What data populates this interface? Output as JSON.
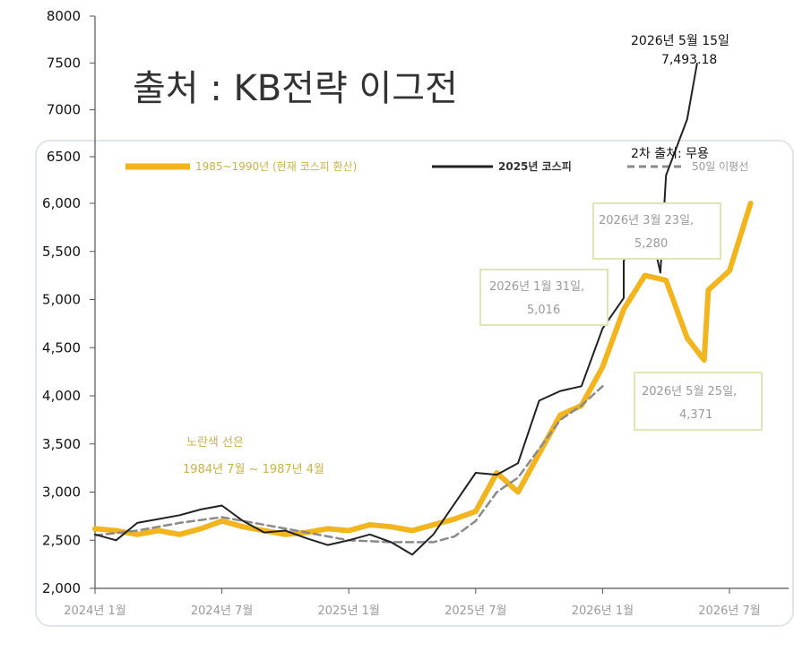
{
  "overlay_title": "출처 :  KB전략 이그전",
  "legend": {
    "yellow": "1985~1990년 (현재 코스피 환산)",
    "black": "2025년 코스피",
    "dashed": "50일 이평선"
  },
  "note": {
    "line1": "노란색 선은",
    "line2": "1984년 7월 ~ 1987년 4월"
  },
  "callouts": {
    "jan31": {
      "date": "2026년 1월 31일,",
      "value": "5,016"
    },
    "mar23": {
      "date": "2026년 3월 23일,",
      "value": "5,280"
    },
    "may25": {
      "date": "2026년 5월 25일,",
      "value": "4,371"
    },
    "may15": {
      "date": "2026년 5월 15일",
      "value": "7,493.18"
    },
    "source2": "2차 출처: 무용"
  },
  "colors": {
    "yellow": "#f2b51e",
    "black": "#222222",
    "dashed": "#8a8a8a",
    "axis": "#555555",
    "panel_border": "#dfe6ea"
  },
  "chart_data": {
    "type": "line",
    "y_ticks_upper": [
      "8000",
      "7500",
      "7000",
      "6500"
    ],
    "y_ticks_lower": [
      "6,000",
      "5,500",
      "5,000",
      "4,500",
      "4,000",
      "3,500",
      "3,000",
      "2,500",
      "2,000"
    ],
    "x_ticks": [
      "2024년 1월",
      "2024년 7월",
      "2025년 1월",
      "2025년 7월",
      "2026년 1월",
      "2026년 7월"
    ],
    "ylim": [
      2000,
      8000
    ],
    "xlim": [
      "2024-01",
      "2026-08"
    ],
    "series": [
      {
        "name": "1985~1990년 (현재 코스피 환산)",
        "points": [
          [
            "2024-01",
            2620
          ],
          [
            "2024-02",
            2600
          ],
          [
            "2024-03",
            2560
          ],
          [
            "2024-04",
            2600
          ],
          [
            "2024-05",
            2560
          ],
          [
            "2024-06",
            2620
          ],
          [
            "2024-07",
            2700
          ],
          [
            "2024-08",
            2640
          ],
          [
            "2024-09",
            2600
          ],
          [
            "2024-10",
            2560
          ],
          [
            "2024-11",
            2580
          ],
          [
            "2024-12",
            2620
          ],
          [
            "2025-01",
            2600
          ],
          [
            "2025-02",
            2660
          ],
          [
            "2025-03",
            2640
          ],
          [
            "2025-04",
            2600
          ],
          [
            "2025-05",
            2660
          ],
          [
            "2025-06",
            2720
          ],
          [
            "2025-07",
            2800
          ],
          [
            "2025-08",
            3200
          ],
          [
            "2025-09",
            3000
          ],
          [
            "2025-10",
            3400
          ],
          [
            "2025-11",
            3800
          ],
          [
            "2025-12",
            3900
          ],
          [
            "2026-01",
            4300
          ],
          [
            "2026-02",
            4900
          ],
          [
            "2026-03",
            5250
          ],
          [
            "2026-04",
            5200
          ],
          [
            "2026-05",
            4600
          ],
          [
            "2026-05-25",
            4371
          ],
          [
            "2026-06",
            5100
          ],
          [
            "2026-07",
            5300
          ],
          [
            "2026-08",
            6000
          ]
        ]
      },
      {
        "name": "2025년 코스피",
        "points": [
          [
            "2024-01",
            2560
          ],
          [
            "2024-02",
            2500
          ],
          [
            "2024-03",
            2680
          ],
          [
            "2024-04",
            2720
          ],
          [
            "2024-05",
            2760
          ],
          [
            "2024-06",
            2820
          ],
          [
            "2024-07",
            2860
          ],
          [
            "2024-08",
            2700
          ],
          [
            "2024-09",
            2580
          ],
          [
            "2024-10",
            2600
          ],
          [
            "2024-11",
            2520
          ],
          [
            "2024-12",
            2450
          ],
          [
            "2025-01",
            2500
          ],
          [
            "2025-02",
            2560
          ],
          [
            "2025-03",
            2480
          ],
          [
            "2025-04",
            2350
          ],
          [
            "2025-05",
            2560
          ],
          [
            "2025-06",
            2880
          ],
          [
            "2025-07",
            3200
          ],
          [
            "2025-08",
            3180
          ],
          [
            "2025-09",
            3300
          ],
          [
            "2025-10",
            3950
          ],
          [
            "2025-11",
            4050
          ],
          [
            "2025-12",
            4100
          ],
          [
            "2026-01",
            4700
          ],
          [
            "2026-01-31",
            5016
          ],
          [
            "2026-02",
            5400
          ],
          [
            "2026-03",
            6000
          ],
          [
            "2026-03-23",
            5280
          ],
          [
            "2026-04",
            6300
          ],
          [
            "2026-05",
            6900
          ],
          [
            "2026-05-15",
            7493.18
          ]
        ]
      },
      {
        "name": "50일 이평선",
        "points": [
          [
            "2024-01",
            2550
          ],
          [
            "2024-03",
            2600
          ],
          [
            "2024-05",
            2680
          ],
          [
            "2024-07",
            2740
          ],
          [
            "2024-09",
            2660
          ],
          [
            "2024-11",
            2580
          ],
          [
            "2025-01",
            2500
          ],
          [
            "2025-03",
            2480
          ],
          [
            "2025-05",
            2480
          ],
          [
            "2025-06",
            2540
          ],
          [
            "2025-07",
            2700
          ],
          [
            "2025-08",
            3000
          ],
          [
            "2025-09",
            3150
          ],
          [
            "2025-10",
            3450
          ],
          [
            "2025-11",
            3750
          ],
          [
            "2025-12",
            3900
          ],
          [
            "2026-01",
            4100
          ]
        ]
      }
    ]
  }
}
